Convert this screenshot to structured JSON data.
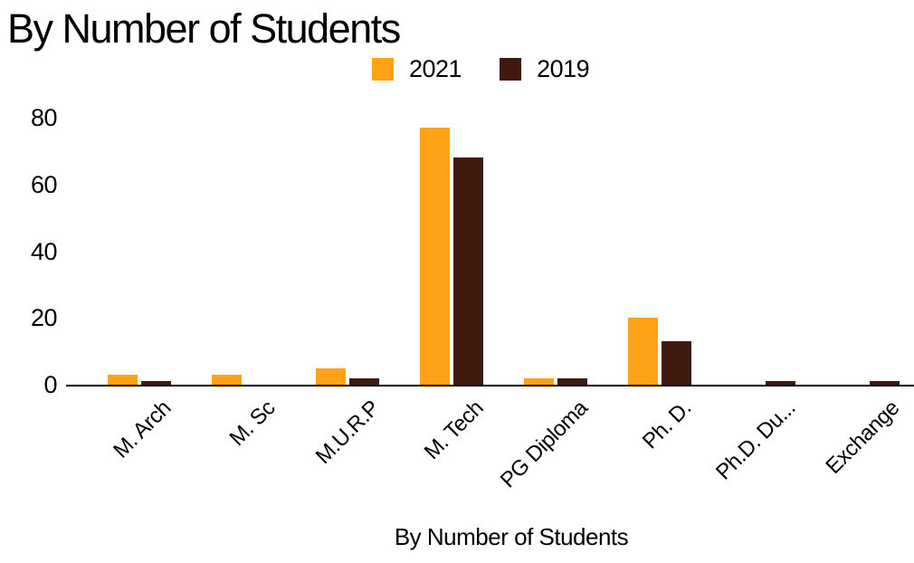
{
  "chart_data": {
    "type": "bar",
    "title": "By Number of Students",
    "xlabel": "By Number of Students",
    "ylabel": "",
    "categories": [
      "M. Arch",
      "M. Sc",
      "M.U.R.P",
      "M. Tech",
      "PG Diploma",
      "Ph. D.",
      "Ph.D. Du...",
      "Exchange"
    ],
    "series": [
      {
        "name": "2021",
        "color": "#FFA215",
        "values": [
          3,
          3,
          5,
          77,
          2,
          20,
          0,
          0
        ]
      },
      {
        "name": "2019",
        "color": "#3E1B0E",
        "values": [
          1,
          0,
          2,
          68,
          2,
          13,
          1,
          1
        ]
      }
    ],
    "ylim": [
      0,
      80
    ],
    "yticks": [
      0,
      20,
      40,
      60,
      80
    ],
    "grid": false,
    "legend_position": "top",
    "axis_color": "#000000",
    "background_color": "#FFFFFF"
  }
}
